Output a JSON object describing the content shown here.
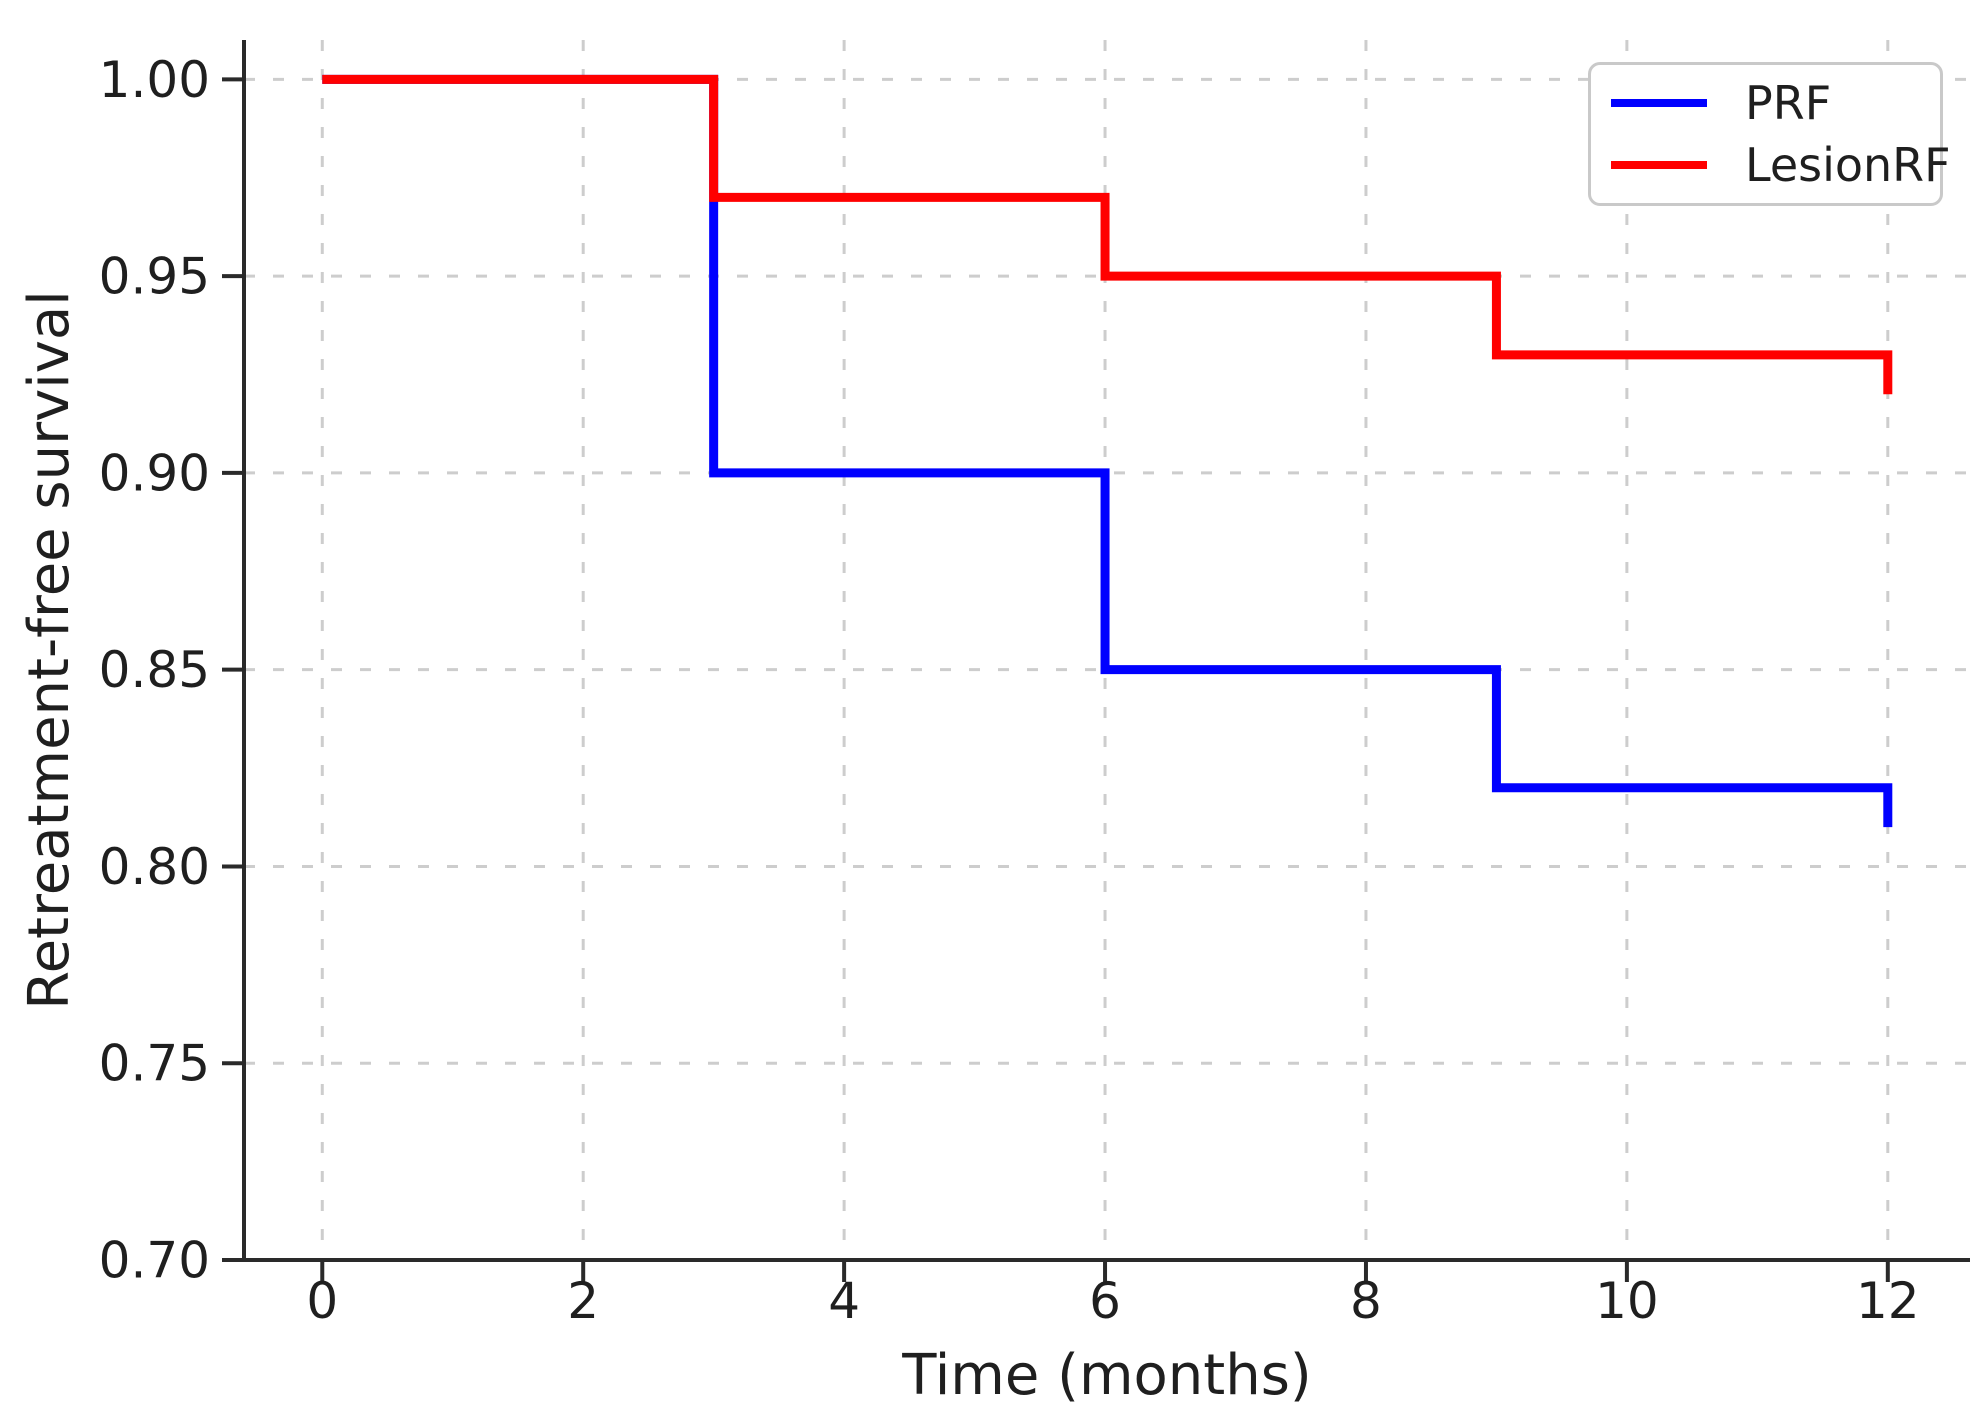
{
  "chart_data": {
    "type": "line",
    "subtype": "step-survival",
    "title": "",
    "xlabel": "Time (months)",
    "ylabel": "Retreatment-free survival",
    "xlim": [
      -0.6,
      12.63
    ],
    "ylim": [
      0.7,
      1.01
    ],
    "xticks": [
      0,
      2,
      4,
      6,
      8,
      10,
      12
    ],
    "xtick_labels": [
      "0",
      "2",
      "4",
      "6",
      "8",
      "10",
      "12"
    ],
    "yticks": [
      0.7,
      0.75,
      0.8,
      0.85,
      0.9,
      0.95,
      1.0
    ],
    "ytick_labels": [
      "0.70",
      "0.75",
      "0.80",
      "0.85",
      "0.90",
      "0.95",
      "1.00"
    ],
    "grid": true,
    "grid_style": "dashed",
    "legend_position": "upper right",
    "series": [
      {
        "name": "PRF",
        "color": "#0000ff",
        "points": [
          [
            0,
            1.0
          ],
          [
            3,
            1.0
          ],
          [
            3,
            0.9
          ],
          [
            6,
            0.9
          ],
          [
            6,
            0.85
          ],
          [
            9,
            0.85
          ],
          [
            9,
            0.82
          ],
          [
            12,
            0.82
          ],
          [
            12,
            0.81
          ]
        ]
      },
      {
        "name": "LesionRF",
        "color": "#ff0000",
        "points": [
          [
            0,
            1.0
          ],
          [
            3,
            1.0
          ],
          [
            3,
            0.97
          ],
          [
            6,
            0.97
          ],
          [
            6,
            0.95
          ],
          [
            9,
            0.95
          ],
          [
            9,
            0.93
          ],
          [
            12,
            0.93
          ],
          [
            12,
            0.92
          ]
        ]
      }
    ]
  },
  "legend": {
    "items": [
      {
        "label": "PRF",
        "color": "#0000ff"
      },
      {
        "label": "LesionRF",
        "color": "#ff0000"
      }
    ]
  },
  "style_colors": {
    "grid": "#cdcdcd",
    "axis": "#2a2a2a",
    "text": "#1f1f1f"
  }
}
